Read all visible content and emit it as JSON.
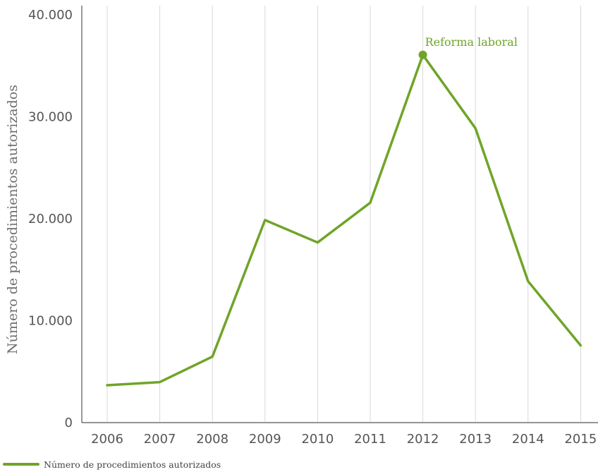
{
  "chart_data": {
    "type": "line",
    "x": [
      "2006",
      "2007",
      "2008",
      "2009",
      "2010",
      "2011",
      "2012",
      "2013",
      "2014",
      "2015"
    ],
    "series": [
      {
        "name": "Número de procedimientos autorizados",
        "values": [
          3600,
          3900,
          6400,
          19800,
          17600,
          21500,
          36000,
          28800,
          13800,
          7500
        ]
      }
    ],
    "ylabel": "Número de procedimientos autorizados",
    "xlabel": "",
    "ylim": [
      0,
      40000
    ],
    "yticks": [
      "0",
      "10.000",
      "20.000",
      "30.000",
      "40.000"
    ],
    "yticks_values": [
      0,
      10000,
      20000,
      30000,
      40000
    ],
    "annotation": {
      "text": "Reforma laboral",
      "x": "2012",
      "y": 36000
    },
    "grid": "vertical",
    "legend_position": "bottom-left",
    "colors": {
      "line": "#6fa527",
      "grid": "#d9d9d9",
      "axis": "#555555"
    }
  }
}
